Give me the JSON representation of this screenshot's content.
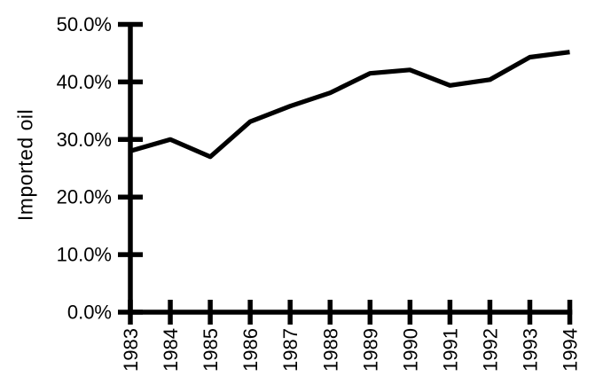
{
  "chart_data": {
    "type": "line",
    "title": "",
    "xlabel": "",
    "ylabel": "Imported oil",
    "categories": [
      "1983",
      "1984",
      "1985",
      "1986",
      "1987",
      "1988",
      "1989",
      "1990",
      "1991",
      "1992",
      "1993",
      "1994"
    ],
    "values": [
      28.0,
      30.0,
      27.0,
      33.1,
      35.8,
      38.1,
      41.5,
      42.1,
      39.4,
      40.4,
      44.3,
      45.2
    ],
    "y_tick_labels": [
      "0.0%",
      "10.0%",
      "20.0%",
      "30.0%",
      "40.0%",
      "50.0%"
    ],
    "ylim": [
      0,
      50
    ],
    "y_tick_step": 10,
    "grid": false,
    "legend": "none",
    "line_color": "#000000",
    "axis_color": "#000000",
    "background_color": "#ffffff"
  }
}
